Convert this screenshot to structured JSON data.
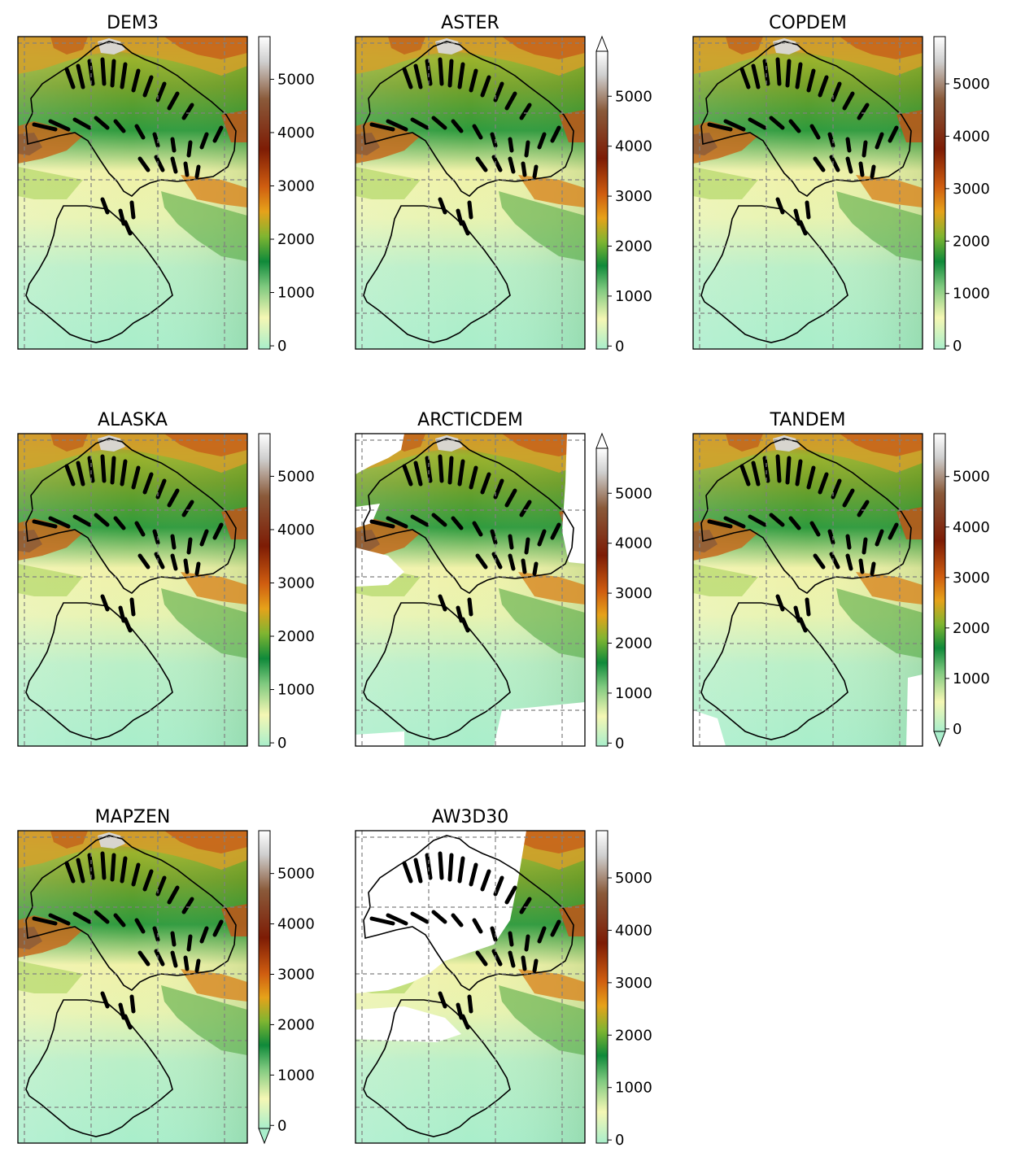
{
  "colormap": [
    "#a9eecb",
    "#f5f7b4",
    "#7fc97f",
    "#0f8a3a",
    "#7fb531",
    "#e6a21a",
    "#cf5d10",
    "#7d1c05",
    "#8a5a3a",
    "#cfcfcf",
    "#ffffff"
  ],
  "nodata_color": "#ffffff",
  "outline_color": "#000000",
  "grid_color": "#808080",
  "chart_data": [
    {
      "type": "heatmap",
      "title": "DEM3",
      "colorbar_ticks": [
        0,
        1000,
        2000,
        3000,
        4000,
        5000
      ],
      "vmin": -60,
      "vmax": 5800,
      "extend": "neither",
      "nodata": "none"
    },
    {
      "type": "heatmap",
      "title": "ASTER",
      "colorbar_ticks": [
        0,
        1000,
        2000,
        3000,
        4000,
        5000
      ],
      "vmin": -60,
      "vmax": 5900,
      "extend": "max",
      "nodata": "none"
    },
    {
      "type": "heatmap",
      "title": "COPDEM",
      "colorbar_ticks": [
        0,
        1000,
        2000,
        3000,
        4000,
        5000
      ],
      "vmin": -60,
      "vmax": 5900,
      "extend": "neither",
      "nodata": "none"
    },
    {
      "type": "heatmap",
      "title": "ALASKA",
      "colorbar_ticks": [
        0,
        1000,
        2000,
        3000,
        4000,
        5000
      ],
      "vmin": -60,
      "vmax": 5800,
      "extend": "neither",
      "nodata": "none"
    },
    {
      "type": "heatmap",
      "title": "ARCTICDEM",
      "colorbar_ticks": [
        0,
        1000,
        2000,
        3000,
        4000,
        5000
      ],
      "vmin": -60,
      "vmax": 5900,
      "extend": "max",
      "nodata": "north-west and east margins"
    },
    {
      "type": "heatmap",
      "title": "TANDEM",
      "colorbar_ticks": [
        0,
        1000,
        2000,
        3000,
        4000,
        5000
      ],
      "vmin": -50,
      "vmax": 5850,
      "extend": "min",
      "nodata": "south-east margin"
    },
    {
      "type": "heatmap",
      "title": "MAPZEN",
      "colorbar_ticks": [
        0,
        1000,
        2000,
        3000,
        4000,
        5000
      ],
      "vmin": -60,
      "vmax": 5850,
      "extend": "min",
      "nodata": "none"
    },
    {
      "type": "heatmap",
      "title": "AW3D30",
      "colorbar_ticks": [
        0,
        1000,
        2000,
        3000,
        4000,
        5000
      ],
      "vmin": -60,
      "vmax": 5900,
      "extend": "neither",
      "nodata": "northern and western areas"
    }
  ]
}
